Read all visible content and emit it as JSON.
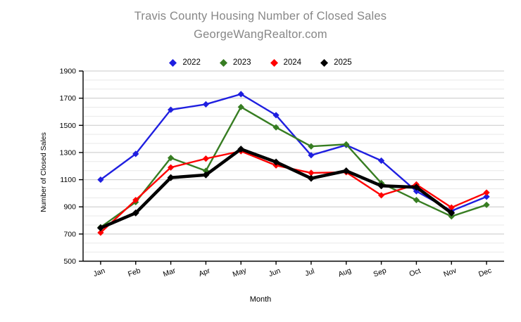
{
  "title": {
    "line1": "Travis County Housing Number of Closed Sales",
    "line2": "GeorgeWangRealtor.com",
    "color": "#878787"
  },
  "chart_data": {
    "type": "line",
    "title": "Travis County Housing Number of Closed Sales",
    "subtitle": "GeorgeWangRealtor.com",
    "xlabel": "Month",
    "ylabel": "Number of Closed Sales",
    "categories": [
      "Jan",
      "Feb",
      "Mar",
      "Apr",
      "May",
      "Jun",
      "Jul",
      "Aug",
      "Sep",
      "Oct",
      "Nov",
      "Dec"
    ],
    "ylim": [
      500,
      1900
    ],
    "y_tick_step": 200,
    "y_tick_labels": [
      "500",
      "700",
      "900",
      "1100",
      "1300",
      "1500",
      "1700",
      "1900"
    ],
    "grid": "horizontal major gray with lighter minor lines at thirds",
    "legend_position": "top center",
    "marker": "diamond",
    "series": [
      {
        "name": "2022",
        "color": "#1f1fe0",
        "line_width": 2.4,
        "values": [
          1100,
          1290,
          1615,
          1655,
          1730,
          1575,
          1280,
          1355,
          1240,
          1015,
          870,
          975
        ]
      },
      {
        "name": "2023",
        "color": "#377d22",
        "line_width": 2.4,
        "values": [
          750,
          935,
          1260,
          1165,
          1635,
          1485,
          1345,
          1360,
          1075,
          950,
          830,
          915
        ]
      },
      {
        "name": "2024",
        "color": "#ff0000",
        "line_width": 2.4,
        "values": [
          710,
          950,
          1190,
          1255,
          1310,
          1205,
          1150,
          1155,
          985,
          1065,
          895,
          1005
        ]
      },
      {
        "name": "2025",
        "color": "#000000",
        "line_width": 4.5,
        "values": [
          745,
          855,
          1115,
          1135,
          1325,
          1230,
          1110,
          1165,
          1055,
          1045,
          855,
          null
        ]
      }
    ]
  },
  "colors": {
    "background": "#ffffff",
    "axis": "#000000",
    "grid_major": "#c8c8c8",
    "grid_minor": "#e9e9e9",
    "tick_label": "#000000"
  }
}
